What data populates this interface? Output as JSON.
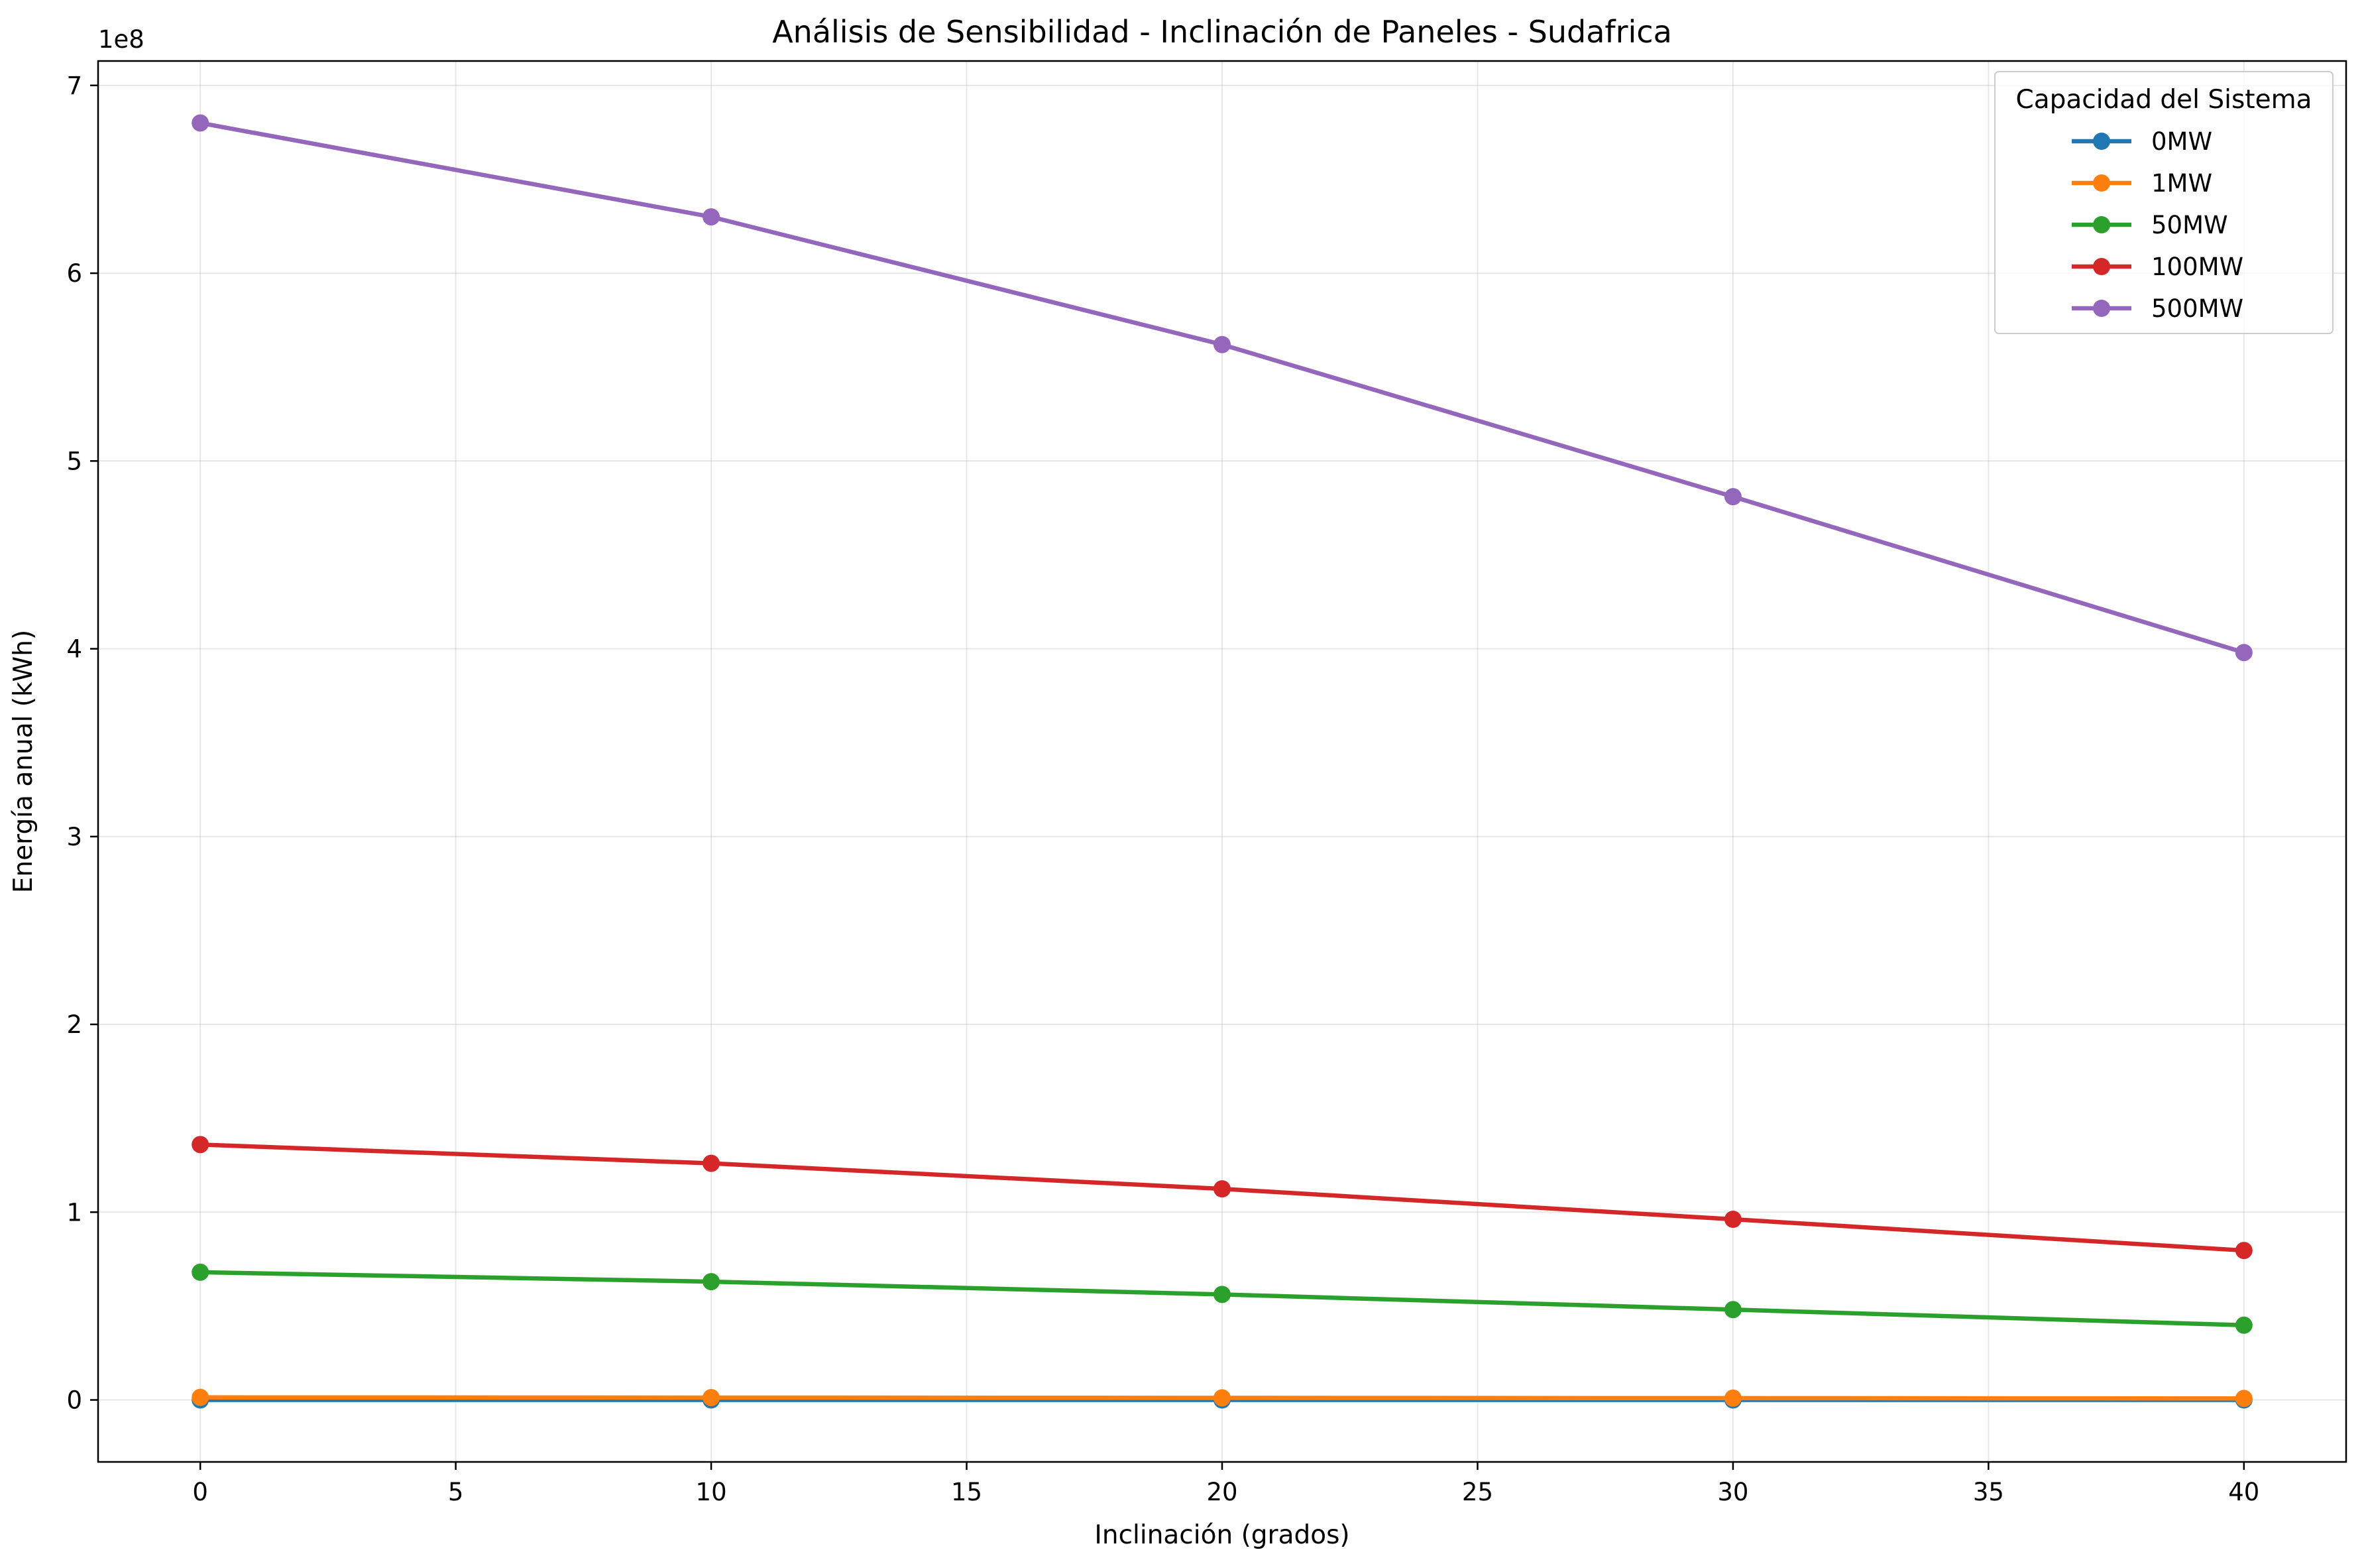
{
  "chart_data": {
    "type": "line",
    "title": "Análisis de Sensibilidad - Inclinación de Paneles - Sudafrica",
    "xlabel": "Inclinación (grados)",
    "ylabel": "Energía anual (kWh)",
    "y_offset_label": "1e8",
    "xlim": [
      -2,
      42
    ],
    "ylim": [
      -0.33,
      7.13
    ],
    "x_ticks": [
      0,
      5,
      10,
      15,
      20,
      25,
      30,
      35,
      40
    ],
    "y_ticks": [
      0,
      1,
      2,
      3,
      4,
      5,
      6,
      7
    ],
    "y_unit_multiplier": 100000000,
    "grid": true,
    "legend": {
      "title": "Capacidad del Sistema",
      "placement": "top-right"
    },
    "x": [
      0,
      10,
      20,
      30,
      40
    ],
    "series": [
      {
        "name": "0MW",
        "color": "#1f77b4",
        "values": [
          0.0,
          0.0,
          0.0,
          0.0,
          0.0
        ]
      },
      {
        "name": "1MW",
        "color": "#ff7f0e",
        "values": [
          0.0136,
          0.0126,
          0.0112,
          0.0096,
          0.008
        ]
      },
      {
        "name": "50MW",
        "color": "#2ca02c",
        "values": [
          0.68,
          0.63,
          0.562,
          0.481,
          0.398
        ]
      },
      {
        "name": "100MW",
        "color": "#d62728",
        "values": [
          1.36,
          1.26,
          1.124,
          0.962,
          0.796
        ]
      },
      {
        "name": "500MW",
        "color": "#9467bd",
        "values": [
          6.8,
          6.3,
          5.62,
          4.81,
          3.98
        ]
      }
    ]
  }
}
